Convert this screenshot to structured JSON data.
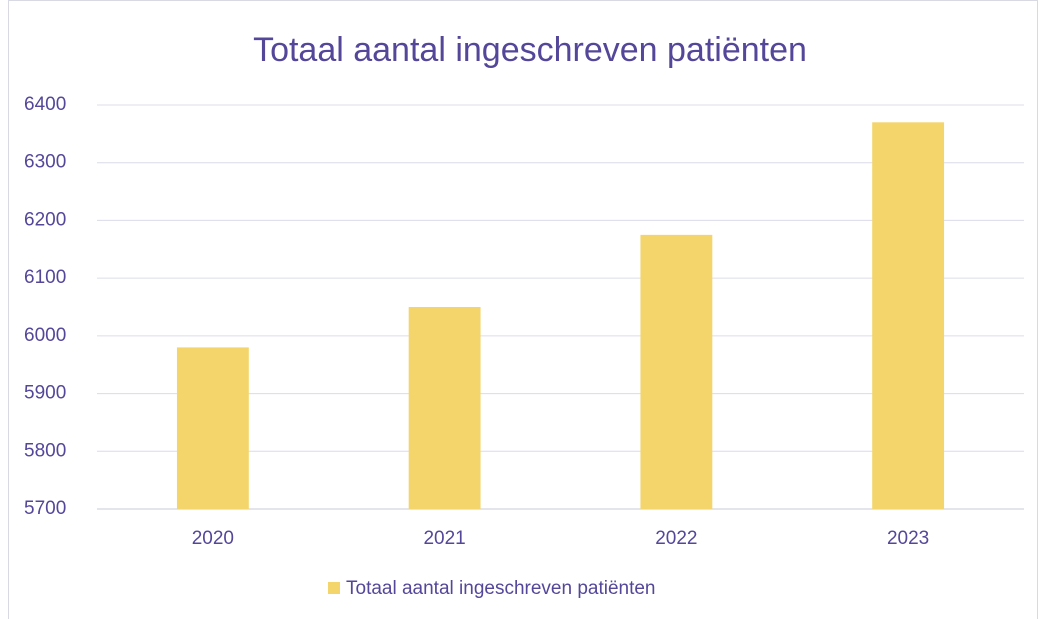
{
  "chart_data": {
    "type": "bar",
    "title": "Totaal aantal ingeschreven patiënten",
    "categories": [
      "2020",
      "2021",
      "2022",
      "2023"
    ],
    "series": [
      {
        "name": "Totaal aantal ingeschreven patiënten",
        "color": "#f4d56b",
        "values": [
          5980,
          6050,
          6175,
          6370
        ]
      }
    ],
    "ylim": [
      5700,
      6400
    ],
    "yticks": [
      5700,
      5800,
      5900,
      6000,
      6100,
      6200,
      6300,
      6400
    ],
    "grid": true,
    "legend": "bottom"
  }
}
